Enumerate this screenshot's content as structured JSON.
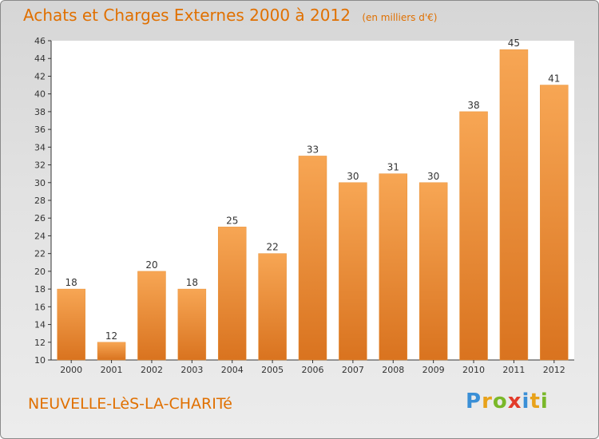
{
  "chart_data": {
    "type": "bar",
    "title": "Achats et Charges Externes 2000 à 2012",
    "subtitle": "(en milliers d'€)",
    "categories": [
      "2000",
      "2001",
      "2002",
      "2003",
      "2004",
      "2005",
      "2006",
      "2007",
      "2008",
      "2009",
      "2010",
      "2011",
      "2012"
    ],
    "values": [
      18,
      12,
      20,
      18,
      25,
      22,
      33,
      30,
      31,
      30,
      38,
      45,
      41
    ],
    "xlabel": "",
    "ylabel": "",
    "ylim": [
      10,
      46
    ],
    "yticks": [
      10,
      12,
      14,
      16,
      18,
      20,
      22,
      24,
      26,
      28,
      30,
      32,
      34,
      36,
      38,
      40,
      42,
      44,
      46
    ],
    "grid": false,
    "colors": {
      "bar_light": "#f7a654",
      "bar_dark": "#d9731f",
      "text_accent": "#e07000"
    }
  },
  "footer": {
    "town": "NEUVELLE-LèS-LA-CHARITé",
    "logo_letters": [
      {
        "ch": "P",
        "color": "#3a8fd6"
      },
      {
        "ch": "r",
        "color": "#e8a21a"
      },
      {
        "ch": "o",
        "color": "#7ab829"
      },
      {
        "ch": "x",
        "color": "#e23b2a"
      },
      {
        "ch": "i",
        "color": "#3a8fd6"
      },
      {
        "ch": "t",
        "color": "#e8a21a"
      },
      {
        "ch": "i",
        "color": "#7ab829"
      }
    ]
  }
}
